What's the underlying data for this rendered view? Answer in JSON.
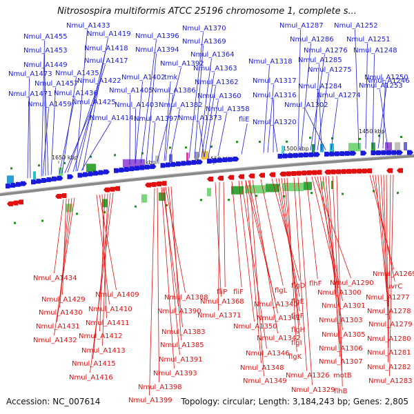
{
  "title": "Nitrosospira multiformis ATCC 25196 chromosome 1, complete s...",
  "footer": {
    "accession": "Accession: NC_007614",
    "topology": "Topology: circular; Length: 3,184,243 bp; Genes: 2,805"
  },
  "colors": {
    "forward": "#1a1adb",
    "reverse": "#e01010",
    "backbone": "#8a8a8a"
  },
  "ticks": [
    "1650 kbp",
    "1600 kbp",
    "1550 kbp",
    "1500 kbp",
    "1450 kbp"
  ],
  "forward_genes": [
    "Nmul_A1433",
    "Nmul_A1419",
    "Nmul_A1455",
    "Nmul_A1453",
    "Nmul_A1418",
    "Nmul_A1449",
    "Nmul_A1417",
    "Nmul_A1473",
    "Nmul_A1435",
    "Nmul_A1457",
    "Nmul_A1422",
    "Nmul_A1471",
    "Nmul_A1436",
    "Nmul_A1459",
    "Nmul_A1425",
    "Nmul_A1414",
    "Nmul_A1396",
    "Nmul_A1394",
    "Nmul_A1392",
    "Nmul_A1402",
    "tmk",
    "Nmul_A1405",
    "Nmul_A1386",
    "Nmul_A1403",
    "Nmul_A1382",
    "Nmul_A1397",
    "Nmul_A1370",
    "Nmul_A1369",
    "Nmul_A1364",
    "Nmul_A1363",
    "Nmul_A1362",
    "Nmul_A1360",
    "Nmul_A1358",
    "Nmul_A1373",
    "fliE",
    "Nmul_A1318",
    "Nmul_A1317",
    "Nmul_A1316",
    "Nmul_A1320",
    "Nmul_A1287",
    "Nmul_A1286",
    "Nmul_A1276",
    "Nmul_A1285",
    "Nmul_A1275",
    "Nmul_A1284",
    "Nmul_A1302",
    "Nmul_A1274",
    "Nmul_A1252",
    "Nmul_A1251",
    "Nmul_A1248",
    "Nmul_A1246",
    "Nmul_A1250",
    "Nmul_A1253"
  ],
  "reverse_genes": [
    "Nmul_A1434",
    "Nmul_A1429",
    "Nmul_A1430",
    "Nmul_A1431",
    "Nmul_A1432",
    "Nmul_A1409",
    "Nmul_A1410",
    "Nmul_A1411",
    "Nmul_A1412",
    "Nmul_A1413",
    "Nmul_A1415",
    "Nmul_A1416",
    "Nmul_A1388",
    "Nmul_A1390",
    "Nmul_A1383",
    "Nmul_A1385",
    "Nmul_A1391",
    "Nmul_A1393",
    "Nmul_A1398",
    "Nmul_A1399",
    "Nmul_A1368",
    "Nmul_A1371",
    "fliP",
    "fliF",
    "Nmul_A1340",
    "Nmul_A1341",
    "Nmul_A1350",
    "Nmul_A1342",
    "Nmul_A1346",
    "Nmul_A1348",
    "Nmul_A1349",
    "flgL",
    "flgD",
    "flgE",
    "flgF",
    "flgH",
    "flgI",
    "flgK",
    "Nmul_A1326",
    "Nmul_A1329",
    "flhF",
    "Nmul_A1290",
    "Nmul_A1300",
    "Nmul_A1301",
    "Nmul_A1303",
    "Nmul_A1305",
    "Nmul_A1306",
    "Nmul_A1307",
    "motB",
    "flhB",
    "Nmul_A1269",
    "uvrC",
    "Nmul_A1277",
    "Nmul_A1278",
    "Nmul_A1279",
    "Nmul_A1280",
    "Nmul_A1281",
    "Nmul_A1282",
    "Nmul_A1283"
  ]
}
